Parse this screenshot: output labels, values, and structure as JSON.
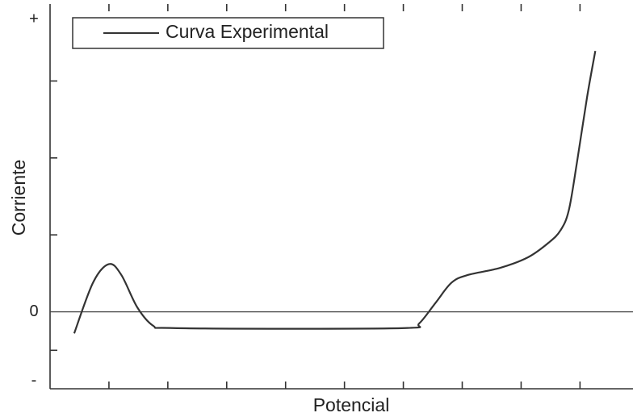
{
  "chart_data": {
    "type": "line",
    "x_label": "Potencial",
    "y_label": "Corriente",
    "x": [
      0.41,
      0.73,
      1.0,
      1.21,
      1.48,
      1.75,
      2.03,
      3.95,
      6.07,
      6.27,
      6.55,
      6.82,
      7.1,
      7.64,
      8.12,
      8.47,
      8.67,
      8.81,
      8.95,
      9.12,
      9.26
    ],
    "series": [
      {
        "name": "Curva Experimental",
        "color": "#333333",
        "values": [
          -0.28,
          0.38,
          0.62,
          0.48,
          0.06,
          -0.18,
          -0.21,
          -0.22,
          -0.21,
          -0.15,
          0.12,
          0.38,
          0.48,
          0.57,
          0.71,
          0.9,
          1.06,
          1.32,
          1.95,
          2.79,
          3.39
        ]
      }
    ],
    "xlim": [
      0,
      9.9
    ],
    "ylim": [
      -1,
      4
    ],
    "xticks_unlabeled": [
      1,
      2,
      3,
      4,
      5,
      6,
      7,
      8,
      9
    ],
    "yticks": [
      {
        "value": 3.8,
        "label": "+"
      },
      {
        "value": 0,
        "label": "0"
      },
      {
        "value": -0.9,
        "label": "-"
      }
    ],
    "yticks_unlabeled": [
      -0.5,
      1,
      2,
      3
    ],
    "zero_line": true,
    "legend": "upper left"
  }
}
